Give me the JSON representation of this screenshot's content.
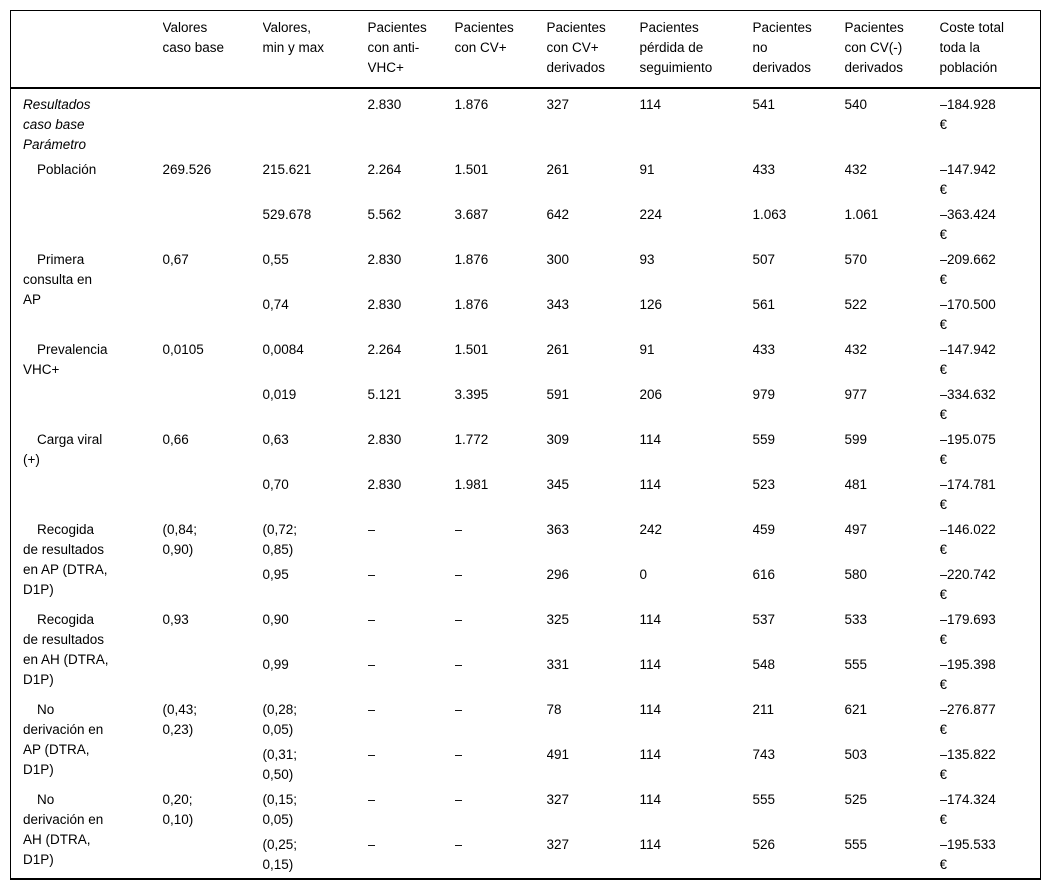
{
  "table": {
    "header": [
      "",
      "Valores\ncaso base",
      "Valores,\nmin y max",
      "Pacientes\ncon anti-\nVHC+",
      "Pacientes\ncon CV+",
      "Pacientes\ncon CV+\nderivados",
      "Pacientes\npérdida de\nseguimiento",
      "Pacientes\nno\nderivados",
      "Pacientes\ncon CV(-)\nderivados",
      "Coste total\ntoda la\npoblación"
    ],
    "groups": [
      {
        "label": "Resultados\ncaso base\nParámetro",
        "italic": true,
        "indent": false,
        "caso_base": "",
        "rows": [
          {
            "minmax": "",
            "values": [
              "2.830",
              "1.876",
              "327",
              "114",
              "541",
              "540"
            ],
            "coste": "–184.928\n€"
          }
        ]
      },
      {
        "label": "Población",
        "italic": false,
        "indent": true,
        "caso_base": "269.526",
        "rows": [
          {
            "minmax": "215.621",
            "values": [
              "2.264",
              "1.501",
              "261",
              "91",
              "433",
              "432"
            ],
            "coste": "–147.942\n€"
          },
          {
            "minmax": "529.678",
            "values": [
              "5.562",
              "3.687",
              "642",
              "224",
              "1.063",
              "1.061"
            ],
            "coste": "–363.424\n€"
          }
        ]
      },
      {
        "label": "Primera\nconsulta en\nAP",
        "italic": false,
        "indent": true,
        "caso_base": "0,67",
        "rows": [
          {
            "minmax": "0,55",
            "values": [
              "2.830",
              "1.876",
              "300",
              "93",
              "507",
              "570"
            ],
            "coste": "–209.662\n€"
          },
          {
            "minmax": "0,74",
            "values": [
              "2.830",
              "1.876",
              "343",
              "126",
              "561",
              "522"
            ],
            "coste": "–170.500\n€"
          }
        ]
      },
      {
        "label": "Prevalencia\nVHC+",
        "italic": false,
        "indent": true,
        "caso_base": "0,0105",
        "rows": [
          {
            "minmax": "0,0084",
            "values": [
              "2.264",
              "1.501",
              "261",
              "91",
              "433",
              "432"
            ],
            "coste": "–147.942\n€"
          },
          {
            "minmax": "0,019",
            "values": [
              "5.121",
              "3.395",
              "591",
              "206",
              "979",
              "977"
            ],
            "coste": "–334.632\n€"
          }
        ]
      },
      {
        "label": "Carga viral\n(+)",
        "italic": false,
        "indent": true,
        "caso_base": "0,66",
        "rows": [
          {
            "minmax": "0,63",
            "values": [
              "2.830",
              "1.772",
              "309",
              "114",
              "559",
              "599"
            ],
            "coste": "–195.075\n€"
          },
          {
            "minmax": "0,70",
            "values": [
              "2.830",
              "1.981",
              "345",
              "114",
              "523",
              "481"
            ],
            "coste": "–174.781\n€"
          }
        ]
      },
      {
        "label": "Recogida\nde resultados\nen AP (DTRA,\nD1P)",
        "italic": false,
        "indent": true,
        "caso_base": "(0,84;\n0,90)",
        "rows": [
          {
            "minmax": "(0,72;\n0,85)",
            "values": [
              "–",
              "–",
              "363",
              "242",
              "459",
              "497"
            ],
            "coste": "–146.022\n€"
          },
          {
            "minmax": "0,95",
            "values": [
              "–",
              "–",
              "296",
              "0",
              "616",
              "580"
            ],
            "coste": "–220.742\n€"
          }
        ]
      },
      {
        "label": "Recogida\nde resultados\nen AH (DTRA,\nD1P)",
        "italic": false,
        "indent": true,
        "caso_base": "0,93",
        "rows": [
          {
            "minmax": "0,90",
            "values": [
              "–",
              "–",
              "325",
              "114",
              "537",
              "533"
            ],
            "coste": "–179.693\n€"
          },
          {
            "minmax": "0,99",
            "values": [
              "–",
              "–",
              "331",
              "114",
              "548",
              "555"
            ],
            "coste": "–195.398\n€"
          }
        ]
      },
      {
        "label": "No\nderivación en\nAP (DTRA,\nD1P)",
        "italic": false,
        "indent": true,
        "caso_base": "(0,43;\n0,23)",
        "rows": [
          {
            "minmax": "(0,28;\n0,05)",
            "values": [
              "–",
              "–",
              "78",
              "114",
              "211",
              "621"
            ],
            "coste": "–276.877\n€"
          },
          {
            "minmax": "(0,31;\n0,50)",
            "values": [
              "–",
              "–",
              "491",
              "114",
              "743",
              "503"
            ],
            "coste": "–135.822\n€"
          }
        ]
      },
      {
        "label": "No\nderivación en\nAH (DTRA,\nD1P)",
        "italic": false,
        "indent": true,
        "caso_base": "0,20;\n0,10)",
        "rows": [
          {
            "minmax": "(0,15;\n0,05)",
            "values": [
              "–",
              "–",
              "327",
              "114",
              "555",
              "525"
            ],
            "coste": "–174.324\n€"
          },
          {
            "minmax": "(0,25;\n0,15)",
            "values": [
              "–",
              "–",
              "327",
              "114",
              "526",
              "555"
            ],
            "coste": "–195.533\n€"
          }
        ]
      }
    ]
  }
}
